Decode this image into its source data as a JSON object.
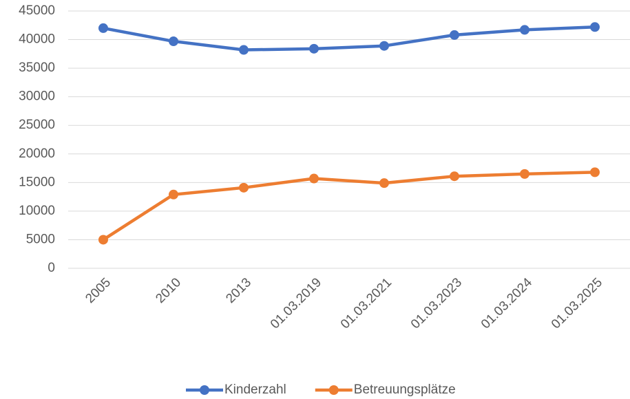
{
  "chart_data": {
    "type": "line",
    "categories": [
      "2005",
      "2010",
      "2013",
      "01.03.2019",
      "01.03.2021",
      "01.03.2023",
      "01.03.2024",
      "01.03.2025"
    ],
    "series": [
      {
        "name": "Kinderzahl",
        "color": "#4472c4",
        "values": [
          42000,
          39700,
          38200,
          38400,
          38900,
          40800,
          41700,
          42200
        ]
      },
      {
        "name": "Betreuungsplätze",
        "color": "#ed7d31",
        "values": [
          5000,
          12900,
          14100,
          15700,
          14900,
          16100,
          16500,
          16800
        ]
      }
    ],
    "ylim": [
      0,
      45000
    ],
    "yticks": [
      0,
      5000,
      10000,
      15000,
      20000,
      25000,
      30000,
      35000,
      40000,
      45000
    ],
    "grid": true,
    "legend": "bottom"
  }
}
